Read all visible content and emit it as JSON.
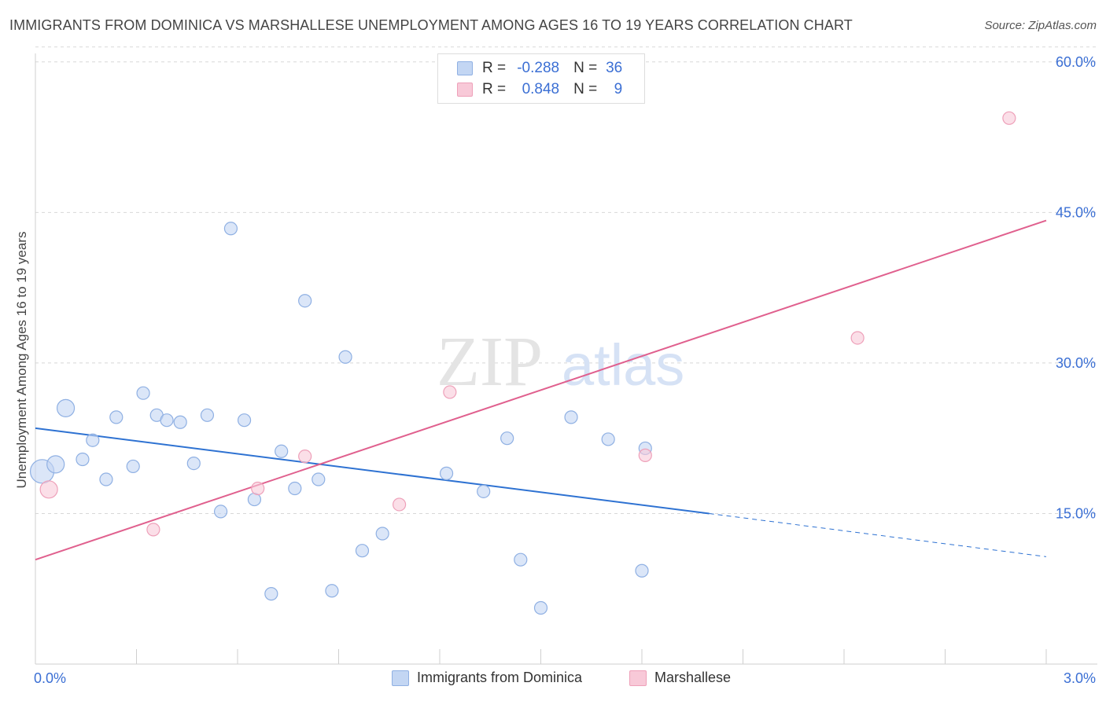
{
  "title": "IMMIGRANTS FROM DOMINICA VS MARSHALLESE UNEMPLOYMENT AMONG AGES 16 TO 19 YEARS CORRELATION CHART",
  "source": "Source: ZipAtlas.com",
  "watermark": {
    "zip": "ZIP",
    "atlas": "atlas"
  },
  "legend": {
    "rows": [
      {
        "r_label": "R =",
        "r_value": "-0.288",
        "n_label": "N =",
        "n_value": "36"
      },
      {
        "r_label": "R =",
        "r_value": "0.848",
        "n_label": "N =",
        "n_value": "9"
      }
    ]
  },
  "bottom_legend": {
    "series1": "Immigrants from Dominica",
    "series2": "Marshallese"
  },
  "colors": {
    "blue_fill": "#c3d6f3",
    "blue_stroke": "#8fb0e3",
    "blue_line": "#2e72d2",
    "pink_fill": "#f8c9d8",
    "pink_stroke": "#eea0b9",
    "pink_line": "#e0608e",
    "axis_label": "#3b6fd4",
    "grid": "#d8d8d8"
  },
  "chart_data": {
    "type": "scatter",
    "title": "IMMIGRANTS FROM DOMINICA VS MARSHALLESE UNEMPLOYMENT AMONG AGES 16 TO 19 YEARS CORRELATION CHART",
    "xlabel": "",
    "ylabel": "Unemployment Among Ages 16 to 19 years",
    "xlim": [
      0,
      3.0
    ],
    "ylim": [
      0,
      62
    ],
    "x_tick_labels": {
      "left": "0.0%",
      "right": "3.0%"
    },
    "y_ticks": [
      15,
      30,
      45,
      60
    ],
    "y_tick_labels": [
      "15.0%",
      "30.0%",
      "45.0%",
      "60.0%"
    ],
    "series": [
      {
        "name": "Immigrants from Dominica",
        "r": -0.288,
        "n": 36,
        "points": [
          {
            "x": 0.02,
            "y": 19.2,
            "s": 3
          },
          {
            "x": 0.06,
            "y": 19.9,
            "s": 2
          },
          {
            "x": 0.09,
            "y": 25.5,
            "s": 2
          },
          {
            "x": 0.14,
            "y": 20.4,
            "s": 1
          },
          {
            "x": 0.17,
            "y": 22.3,
            "s": 1
          },
          {
            "x": 0.21,
            "y": 18.4,
            "s": 1
          },
          {
            "x": 0.24,
            "y": 24.6,
            "s": 1
          },
          {
            "x": 0.29,
            "y": 19.7,
            "s": 1
          },
          {
            "x": 0.32,
            "y": 27.0,
            "s": 1
          },
          {
            "x": 0.36,
            "y": 24.8,
            "s": 1
          },
          {
            "x": 0.39,
            "y": 24.3,
            "s": 1
          },
          {
            "x": 0.43,
            "y": 24.1,
            "s": 1
          },
          {
            "x": 0.47,
            "y": 20.0,
            "s": 1
          },
          {
            "x": 0.51,
            "y": 24.8,
            "s": 1
          },
          {
            "x": 0.55,
            "y": 15.2,
            "s": 1
          },
          {
            "x": 0.58,
            "y": 43.4,
            "s": 1
          },
          {
            "x": 0.62,
            "y": 24.3,
            "s": 1
          },
          {
            "x": 0.65,
            "y": 16.4,
            "s": 1
          },
          {
            "x": 0.7,
            "y": 7.0,
            "s": 1
          },
          {
            "x": 0.73,
            "y": 21.2,
            "s": 1
          },
          {
            "x": 0.77,
            "y": 17.5,
            "s": 1
          },
          {
            "x": 0.8,
            "y": 36.2,
            "s": 1
          },
          {
            "x": 0.84,
            "y": 18.4,
            "s": 1
          },
          {
            "x": 0.88,
            "y": 7.3,
            "s": 1
          },
          {
            "x": 0.92,
            "y": 30.6,
            "s": 1
          },
          {
            "x": 0.97,
            "y": 11.3,
            "s": 1
          },
          {
            "x": 1.03,
            "y": 13.0,
            "s": 1
          },
          {
            "x": 1.22,
            "y": 19.0,
            "s": 1
          },
          {
            "x": 1.33,
            "y": 17.2,
            "s": 1
          },
          {
            "x": 1.4,
            "y": 22.5,
            "s": 1
          },
          {
            "x": 1.44,
            "y": 10.4,
            "s": 1
          },
          {
            "x": 1.5,
            "y": 5.6,
            "s": 1
          },
          {
            "x": 1.59,
            "y": 24.6,
            "s": 1
          },
          {
            "x": 1.7,
            "y": 22.4,
            "s": 1
          },
          {
            "x": 1.8,
            "y": 9.3,
            "s": 1
          },
          {
            "x": 1.81,
            "y": 21.5,
            "s": 1
          }
        ],
        "trend": {
          "x0": 0.0,
          "y0": 23.5,
          "x_solid_end": 2.0,
          "y_solid_end": 15.0,
          "x1": 3.0,
          "y1": 10.7
        }
      },
      {
        "name": "Marshallese",
        "r": 0.848,
        "n": 9,
        "points": [
          {
            "x": 0.04,
            "y": 17.4,
            "s": 2
          },
          {
            "x": 0.35,
            "y": 13.4,
            "s": 1
          },
          {
            "x": 0.66,
            "y": 17.5,
            "s": 1
          },
          {
            "x": 0.8,
            "y": 20.7,
            "s": 1
          },
          {
            "x": 1.08,
            "y": 15.9,
            "s": 1
          },
          {
            "x": 1.23,
            "y": 27.1,
            "s": 1
          },
          {
            "x": 1.81,
            "y": 20.8,
            "s": 1
          },
          {
            "x": 2.44,
            "y": 32.5,
            "s": 1
          },
          {
            "x": 2.89,
            "y": 54.4,
            "s": 1
          }
        ],
        "trend": {
          "x0": 0.0,
          "y0": 10.4,
          "x1": 3.0,
          "y1": 44.2
        }
      }
    ]
  }
}
